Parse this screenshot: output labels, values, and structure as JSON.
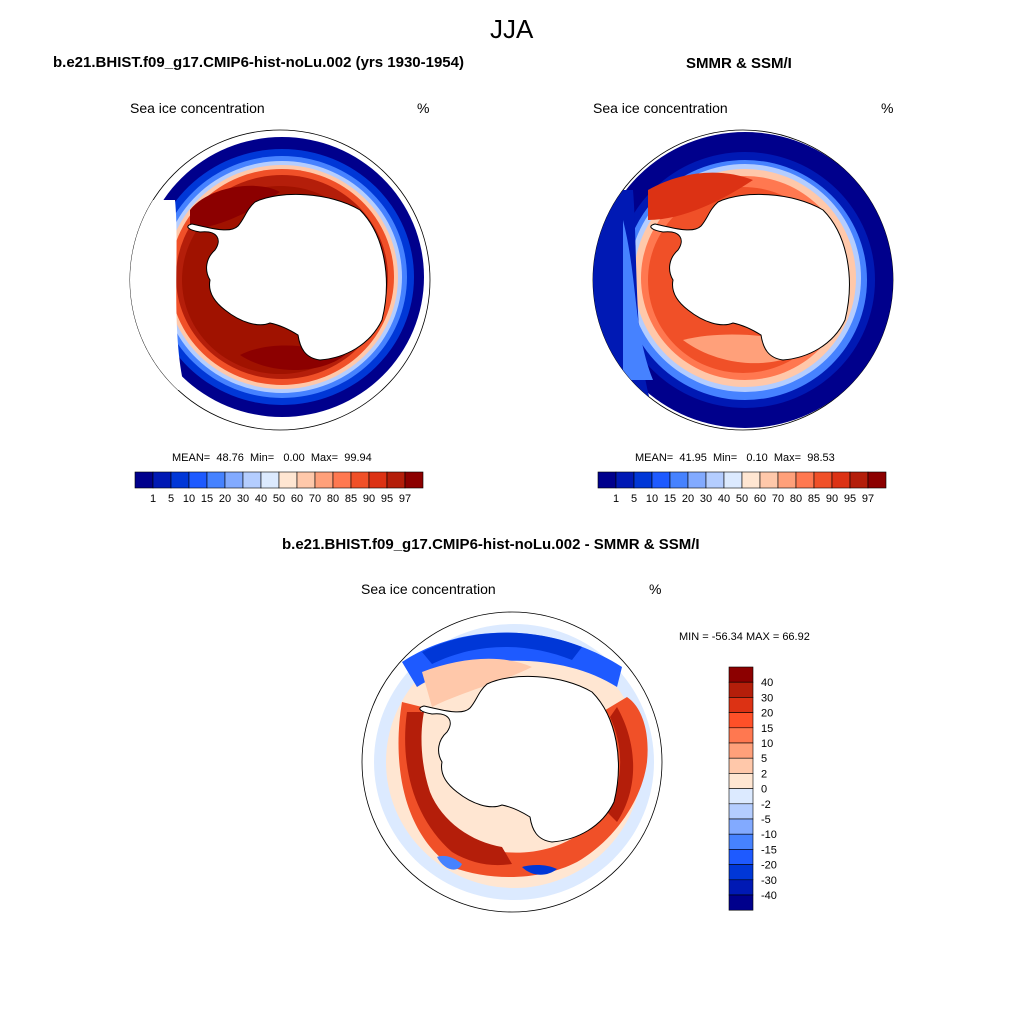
{
  "figure": {
    "title": "JJA"
  },
  "panels": [
    {
      "id": "model",
      "title": "b.e21.BHIST.f09_g17.CMIP6-hist-noLu.002 (yrs 1930-1954)",
      "left_label": "Sea ice concentration",
      "right_label": "%",
      "stats": {
        "mean_label": "MEAN=",
        "mean": "48.76",
        "min_label": "Min=",
        "min": "0.00",
        "max_label": "Max=",
        "max": "99.94"
      }
    },
    {
      "id": "obs",
      "title": "SMMR & SSM/I",
      "left_label": "Sea ice concentration",
      "right_label": "%",
      "stats": {
        "mean_label": "MEAN=",
        "mean": "41.95",
        "min_label": "Min=",
        "min": "0.10",
        "max_label": "Max=",
        "max": "98.53"
      }
    },
    {
      "id": "diff",
      "title": "b.e21.BHIST.f09_g17.CMIP6-hist-noLu.002 - SMMR & SSM/I",
      "left_label": "Sea ice concentration",
      "right_label": "%",
      "minmax": "MIN = -56.34 MAX =  66.92"
    }
  ],
  "colorbar_conc": {
    "colors": [
      "#00008c",
      "#0019b4",
      "#0037d7",
      "#1e5aff",
      "#4682ff",
      "#82aaff",
      "#b4cdff",
      "#dceaff",
      "#ffe6d2",
      "#ffc8aa",
      "#ffa07a",
      "#ff7850",
      "#f05028",
      "#dc3214",
      "#b41e0a",
      "#8c0000"
    ],
    "labels": [
      "1",
      "5",
      "10",
      "15",
      "20",
      "30",
      "40",
      "50",
      "60",
      "70",
      "80",
      "85",
      "90",
      "95",
      "97"
    ]
  },
  "colorbar_diff": {
    "colors": [
      "#8c0000",
      "#b41e0a",
      "#dc3214",
      "#ff5028",
      "#ff7850",
      "#ffa07a",
      "#ffc8aa",
      "#ffe6d2",
      "#dceaff",
      "#b4cdff",
      "#82aaff",
      "#4682ff",
      "#1e5aff",
      "#0037d7",
      "#0019b4",
      "#00008c"
    ],
    "labels": [
      "40",
      "30",
      "20",
      "15",
      "10",
      "5",
      "2",
      "0",
      "-2",
      "-5",
      "-10",
      "-15",
      "-20",
      "-30",
      "-40"
    ]
  }
}
